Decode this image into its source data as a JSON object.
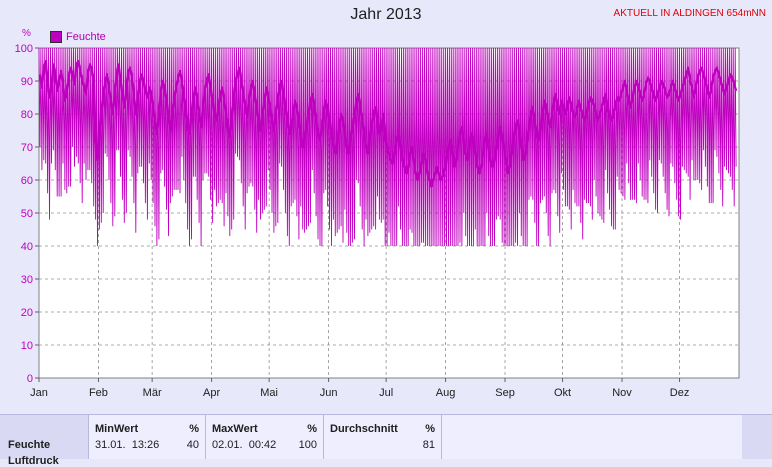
{
  "header": {
    "title": "Jahr 2013",
    "station": "AKTUELL IN ALDINGEN 654mNN"
  },
  "legend": {
    "label": "Feuchte"
  },
  "colors": {
    "series": "#c000c0",
    "station": "#e00000"
  },
  "chart_data": {
    "type": "line",
    "ylabel": "%",
    "ylim": [
      0,
      100
    ],
    "yticks": [
      "0",
      "10",
      "20",
      "30",
      "40",
      "50",
      "60",
      "70",
      "80",
      "90",
      "100"
    ],
    "xlabels": [
      "Jan",
      "Feb",
      "Mär",
      "Apr",
      "Mai",
      "Jun",
      "Jul",
      "Aug",
      "Sep",
      "Okt",
      "Nov",
      "Dez"
    ],
    "grid": true,
    "legend_position": "top-left",
    "series": [
      {
        "name": "Feuchte",
        "daily_mean": [
          92,
          88,
          94,
          96,
          90,
          85,
          88,
          95,
          92,
          87,
          90,
          93,
          89,
          84,
          86,
          91,
          94,
          92,
          89,
          95,
          96,
          93,
          90,
          88,
          86,
          92,
          95,
          94,
          90,
          72,
          66,
          75,
          80,
          86,
          90,
          92,
          88,
          84,
          80,
          86,
          92,
          95,
          90,
          86,
          82,
          88,
          93,
          94,
          91,
          86,
          80,
          84,
          89,
          92,
          90,
          87,
          85,
          88,
          86,
          82,
          78,
          74,
          80,
          86,
          90,
          88,
          84,
          79,
          75,
          80,
          85,
          88,
          91,
          93,
          90,
          86,
          82,
          77,
          74,
          80,
          85,
          88,
          84,
          80,
          76,
          82,
          87,
          90,
          92,
          88,
          84,
          80,
          78,
          82,
          86,
          88,
          84,
          80,
          76,
          73,
          78,
          84,
          90,
          92,
          94,
          90,
          86,
          82,
          79,
          84,
          88,
          90,
          86,
          82,
          78,
          75,
          80,
          84,
          88,
          85,
          82,
          78,
          75,
          80,
          84,
          88,
          90,
          86,
          82,
          78,
          74,
          76,
          80,
          84,
          82,
          78,
          74,
          70,
          72,
          76,
          80,
          84,
          86,
          82,
          78,
          74,
          72,
          76,
          80,
          84,
          82,
          78,
          74,
          70,
          68,
          72,
          76,
          80,
          78,
          74,
          70,
          68,
          72,
          76,
          80,
          84,
          86,
          82,
          78,
          74,
          70,
          68,
          72,
          76,
          80,
          82,
          78,
          74,
          76,
          80,
          72,
          70,
          68,
          66,
          65,
          68,
          72,
          74,
          70,
          66,
          64,
          62,
          64,
          68,
          70,
          66,
          62,
          60,
          62,
          65,
          68,
          66,
          62,
          60,
          58,
          60,
          62,
          64,
          62,
          60,
          61,
          63,
          66,
          70,
          72,
          68,
          64,
          66,
          70,
          74,
          76,
          72,
          68,
          66,
          70,
          74,
          72,
          68,
          64,
          62,
          64,
          68,
          72,
          74,
          70,
          66,
          64,
          66,
          70,
          74,
          76,
          72,
          70,
          66,
          62,
          64,
          68,
          72,
          76,
          78,
          74,
          70,
          66,
          68,
          72,
          76,
          80,
          82,
          78,
          74,
          72,
          76,
          80,
          84,
          82,
          78,
          76,
          80,
          84,
          86,
          82,
          80,
          84,
          82,
          80,
          83,
          85,
          82,
          80,
          79,
          81,
          84,
          82,
          80,
          78,
          80,
          83,
          85,
          84,
          82,
          80,
          78,
          80,
          82,
          84,
          86,
          82,
          80,
          78,
          80,
          83,
          85,
          84,
          86,
          88,
          90,
          87,
          84,
          82,
          85,
          88,
          90,
          88,
          86,
          84,
          86,
          89,
          91,
          90,
          88,
          86,
          84,
          86,
          88,
          90,
          89,
          87,
          85,
          86,
          88,
          90,
          88,
          86,
          84,
          86,
          88,
          90,
          92,
          94,
          90,
          88,
          85,
          88,
          91,
          93,
          94,
          92,
          90,
          87,
          85,
          88,
          91,
          93,
          94,
          92,
          90,
          88,
          86,
          88,
          90,
          92,
          91,
          89,
          87
        ]
      }
    ]
  },
  "stats": {
    "row_label": "Feuchte",
    "row_label_2": "Luftdruck",
    "min": {
      "label": "MinWert",
      "unit": "%",
      "time": "31.01.  13:26",
      "value": "40"
    },
    "max": {
      "label": "MaxWert",
      "unit": "%",
      "time": "02.01.  00:42",
      "value": "100"
    },
    "avg": {
      "label": "Durchschnitt",
      "unit": "%",
      "value": "81"
    }
  }
}
